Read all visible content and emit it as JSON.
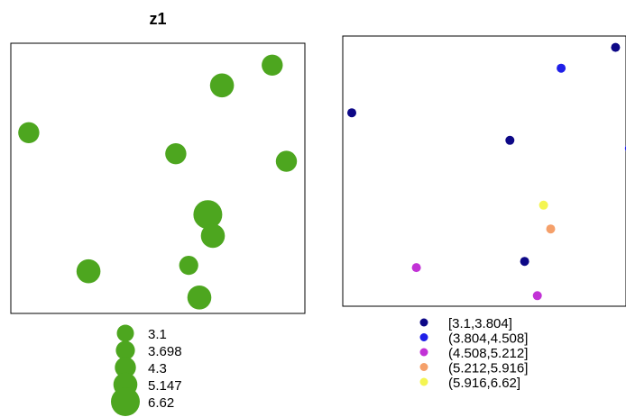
{
  "chart_data": [
    {
      "type": "scatter",
      "title": "z1",
      "point_color": "#4DA61F",
      "size_variable_range": [
        3.1,
        6.62
      ],
      "points": [
        {
          "x": 0.061,
          "y": 0.669,
          "z": 4.3
        },
        {
          "x": 0.718,
          "y": 0.844,
          "z": 5.147
        },
        {
          "x": 0.889,
          "y": 0.919,
          "z": 4.3
        },
        {
          "x": 0.561,
          "y": 0.591,
          "z": 4.3
        },
        {
          "x": 0.937,
          "y": 0.563,
          "z": 4.3
        },
        {
          "x": 0.67,
          "y": 0.366,
          "z": 6.62
        },
        {
          "x": 0.687,
          "y": 0.287,
          "z": 5.147
        },
        {
          "x": 0.605,
          "y": 0.178,
          "z": 3.698
        },
        {
          "x": 0.264,
          "y": 0.156,
          "z": 5.147
        },
        {
          "x": 0.641,
          "y": 0.059,
          "z": 5.147
        }
      ],
      "legend": {
        "position": "bottom",
        "entries": [
          {
            "label": "3.1",
            "value": 3.1
          },
          {
            "label": "3.698",
            "value": 3.698
          },
          {
            "label": "4.3",
            "value": 4.3
          },
          {
            "label": "5.147",
            "value": 5.147
          },
          {
            "label": "6.62",
            "value": 6.62
          }
        ]
      }
    },
    {
      "type": "scatter",
      "title": "",
      "points": [
        {
          "x": 0.963,
          "y": 0.958,
          "class": "(3.1,3.804]"
        },
        {
          "x": 0.771,
          "y": 0.881,
          "class": "(3.804,4.508]"
        },
        {
          "x": 0.032,
          "y": 0.716,
          "class": "(3.1,3.804]"
        },
        {
          "x": 0.59,
          "y": 0.614,
          "class": "(3.1,3.804]"
        },
        {
          "x": 1.012,
          "y": 0.584,
          "class": "(3.804,4.508]"
        },
        {
          "x": 0.709,
          "y": 0.374,
          "class": "(5.916,6.62]"
        },
        {
          "x": 0.734,
          "y": 0.286,
          "class": "(5.212,5.916]"
        },
        {
          "x": 0.642,
          "y": 0.166,
          "class": "(3.1,3.804]"
        },
        {
          "x": 0.26,
          "y": 0.143,
          "class": "(4.508,5.212]"
        },
        {
          "x": 0.687,
          "y": 0.039,
          "class": "(4.508,5.212]"
        }
      ],
      "legend": {
        "position": "bottom",
        "entries": [
          {
            "label": "[3.1,3.804]",
            "key": "(3.1,3.804]",
            "color": "#0D0887"
          },
          {
            "label": "(3.804,4.508]",
            "key": "(3.804,4.508]",
            "color": "#1F1FE8"
          },
          {
            "label": "(4.508,5.212]",
            "key": "(4.508,5.212]",
            "color": "#C232D6"
          },
          {
            "label": "(5.212,5.916]",
            "key": "(5.212,5.916]",
            "color": "#F5A06A"
          },
          {
            "label": "(5.916,6.62]",
            "key": "(5.916,6.62]",
            "color": "#F4F552"
          }
        ]
      }
    }
  ]
}
